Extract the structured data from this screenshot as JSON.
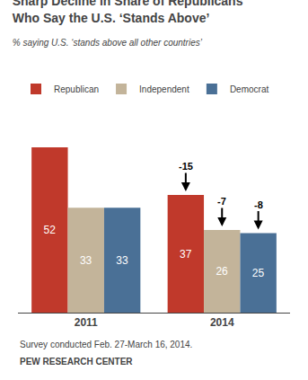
{
  "chart_data": {
    "type": "bar",
    "title": "Sharp Decline in Share of Republicans\nWho Say the U.S. ‘Stands Above’",
    "subtitle": "% saying U.S. ‘stands above all other countries’",
    "categories": [
      "2011",
      "2014"
    ],
    "series": [
      {
        "name": "Republican",
        "color": "#c0392b",
        "values": [
          52,
          37
        ],
        "change": -15
      },
      {
        "name": "Independent",
        "color": "#c3b49a",
        "values": [
          33,
          26
        ],
        "change": -7
      },
      {
        "name": "Democrat",
        "color": "#4a7096",
        "values": [
          33,
          25
        ],
        "change": -8
      }
    ],
    "ylim": [
      0,
      65
    ],
    "yticks": [],
    "tick_labels": "x",
    "data_labels": true,
    "grid": false,
    "legend": "top",
    "annotations": [
      "Survey conducted Feb. 27-March 16, 2014.",
      "PEW RESEARCH CENTER"
    ]
  }
}
